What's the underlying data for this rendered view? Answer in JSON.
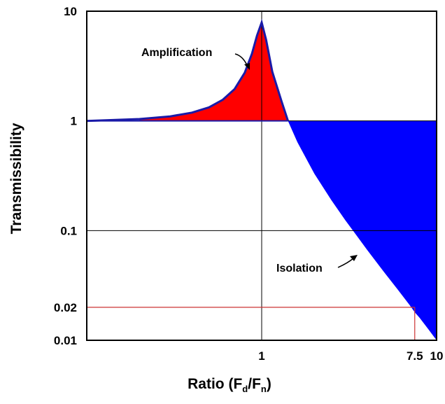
{
  "chart_data": {
    "type": "area",
    "title": "",
    "xlabel": "Ratio (F",
    "xlabel_sub1": "d",
    "xlabel_mid": "/F",
    "xlabel_sub2": "n",
    "xlabel_end": ")",
    "ylabel": "Transmissibility",
    "x_scale": "log",
    "y_scale": "log",
    "xlim": [
      0.1,
      10
    ],
    "ylim": [
      0.01,
      10
    ],
    "x_ticks": [
      {
        "value": 1,
        "label": "1"
      },
      {
        "value": 7.5,
        "label": "7.5"
      },
      {
        "value": 10,
        "label": "10"
      }
    ],
    "y_ticks": [
      {
        "value": 10,
        "label": "10"
      },
      {
        "value": 1,
        "label": "1"
      },
      {
        "value": 0.1,
        "label": "0.1"
      },
      {
        "value": 0.02,
        "label": "0.02"
      },
      {
        "value": 0.01,
        "label": "0.01"
      }
    ],
    "gridlines": {
      "x": [
        1
      ],
      "y": [
        1,
        0.1
      ]
    },
    "series": [
      {
        "name": "Amplification",
        "color": "#ff0000",
        "points": [
          [
            0.1,
            1.0
          ],
          [
            0.2,
            1.04
          ],
          [
            0.3,
            1.1
          ],
          [
            0.4,
            1.19
          ],
          [
            0.5,
            1.33
          ],
          [
            0.6,
            1.56
          ],
          [
            0.7,
            1.95
          ],
          [
            0.8,
            2.75
          ],
          [
            0.88,
            4.1
          ],
          [
            0.94,
            6.0
          ],
          [
            1.0,
            7.9
          ],
          [
            1.06,
            5.5
          ],
          [
            1.15,
            2.8
          ],
          [
            1.3,
            1.5
          ],
          [
            1.414,
            1.0
          ]
        ]
      },
      {
        "name": "Isolation",
        "color": "#0000ff",
        "points": [
          [
            1.414,
            1.0
          ],
          [
            1.6,
            0.64
          ],
          [
            2.0,
            0.33
          ],
          [
            2.5,
            0.19
          ],
          [
            3.0,
            0.125
          ],
          [
            4.0,
            0.067
          ],
          [
            5.0,
            0.042
          ],
          [
            6.0,
            0.029
          ],
          [
            7.0,
            0.021
          ],
          [
            7.5,
            0.018
          ],
          [
            8.0,
            0.016
          ],
          [
            9.0,
            0.0125
          ],
          [
            10.0,
            0.01
          ]
        ]
      }
    ],
    "reference_point": {
      "x": 7.5,
      "y": 0.02,
      "color": "#cc3333"
    },
    "annotations": [
      {
        "text": "Amplification",
        "target_series": "Amplification"
      },
      {
        "text": "Isolation",
        "target_series": "Isolation"
      }
    ],
    "grid": false,
    "legend": "none"
  }
}
